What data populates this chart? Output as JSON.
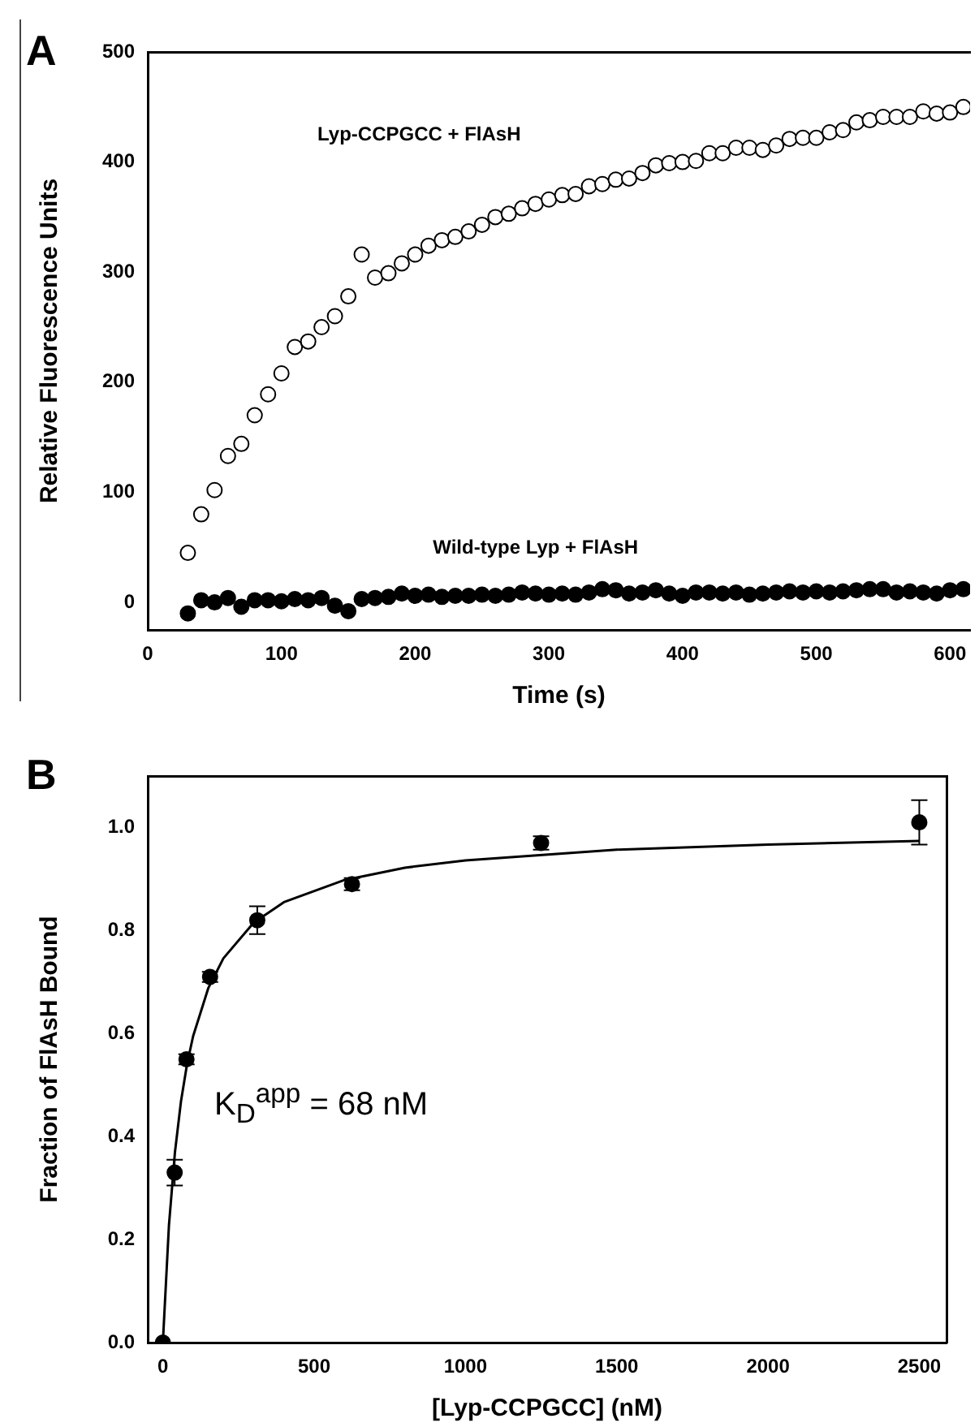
{
  "chart_data": [
    {
      "type": "scatter",
      "xlabel": "Time (s)",
      "ylabel": "Relative Fluorescence Units",
      "annotations": [
        "A"
      ],
      "xlim": [
        0,
        615
      ],
      "ylim": [
        -25,
        500
      ],
      "xticks": [
        0,
        100,
        200,
        300,
        400,
        500,
        600
      ],
      "yticks": [
        0,
        100,
        200,
        300,
        400,
        500
      ],
      "grid": false,
      "legend": false,
      "marker": "circle",
      "x": [
        30,
        40,
        50,
        60,
        70,
        80,
        90,
        100,
        110,
        120,
        130,
        140,
        150,
        160,
        170,
        180,
        190,
        200,
        210,
        220,
        230,
        240,
        250,
        260,
        270,
        280,
        290,
        300,
        310,
        320,
        330,
        340,
        350,
        360,
        370,
        380,
        390,
        400,
        410,
        420,
        430,
        440,
        450,
        460,
        470,
        480,
        490,
        500,
        510,
        520,
        530,
        540,
        550,
        560,
        570,
        580,
        590,
        600,
        610
      ],
      "series": [
        {
          "name": "Lyp-CCPGCC + FlAsH",
          "color": "#000000",
          "values": [
            45,
            80,
            102,
            133,
            144,
            170,
            189,
            208,
            232,
            237,
            250,
            260,
            278,
            316,
            295,
            299,
            308,
            316,
            324,
            329,
            332,
            337,
            343,
            350,
            353,
            358,
            362,
            366,
            370,
            371,
            378,
            380,
            384,
            385,
            390,
            397,
            399,
            400,
            401,
            408,
            408,
            413,
            413,
            411,
            415,
            421,
            422,
            422,
            427,
            429,
            436,
            438,
            441,
            441,
            441,
            446,
            444,
            445,
            450
          ]
        },
        {
          "name": "Wild-type Lyp + FlAsH",
          "color": "#000000",
          "values": [
            -10,
            2,
            0,
            4,
            -4,
            2,
            2,
            1,
            3,
            2,
            4,
            -3,
            -8,
            3,
            4,
            5,
            8,
            6,
            7,
            5,
            6,
            6,
            7,
            6,
            7,
            9,
            8,
            7,
            8,
            7,
            9,
            12,
            11,
            8,
            9,
            11,
            8,
            6,
            9,
            9,
            8,
            9,
            7,
            8,
            9,
            10,
            9,
            10,
            9,
            10,
            11,
            12,
            12,
            9,
            10,
            9,
            8,
            11,
            12
          ]
        }
      ]
    },
    {
      "type": "scatter",
      "xlabel": "[Lyp-CCPGCC] (nM)",
      "ylabel": "Fraction of FlAsH Bound",
      "annotations": [
        "B",
        "K$_{D}$$^{app}$ = 68 nM"
      ],
      "xlim": [
        -50,
        2590
      ],
      "ylim": [
        0,
        1.1
      ],
      "xticks": [
        0,
        500,
        1000,
        1500,
        2000,
        2500
      ],
      "yticks": [
        {
          "value": 0,
          "label": "0.0"
        },
        0.2,
        0.4,
        0.6,
        0.8,
        {
          "value": 1,
          "label": "1.0"
        }
      ],
      "grid": false,
      "legend": false,
      "marker": "circle",
      "series": [
        {
          "color": "#000000",
          "x": [
            0,
            39,
            78,
            156,
            312,
            625,
            1250,
            2500
          ],
          "values": [
            0,
            0.33,
            0.55,
            0.71,
            0.82,
            0.89,
            0.97,
            1.01
          ],
          "errors": [
            null,
            0.025,
            0.01,
            0.01,
            0.027,
            0.012,
            0.013,
            0.043
          ]
        },
        {
          "type": "line",
          "color": "#000000",
          "marker": "none",
          "x": [
            0,
            20,
            40,
            60,
            80,
            100,
            150,
            200,
            300,
            400,
            600,
            800,
            1000,
            1500,
            2000,
            2500
          ],
          "values": [
            0,
            0.227,
            0.37,
            0.469,
            0.541,
            0.595,
            0.688,
            0.746,
            0.815,
            0.855,
            0.898,
            0.922,
            0.936,
            0.957,
            0.967,
            0.974
          ]
        }
      ]
    }
  ]
}
